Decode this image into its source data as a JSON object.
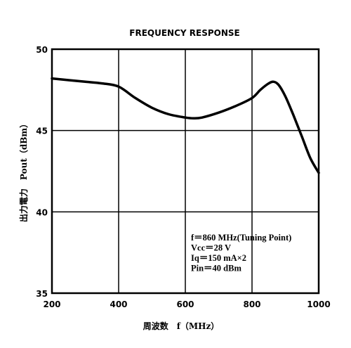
{
  "chart_data": {
    "type": "line",
    "title": "FREQUENCY RESPONSE",
    "xlabel": "周波数　f（MHz）",
    "ylabel": "出力電力　Pout（dBm）",
    "xlim": [
      200,
      1000
    ],
    "ylim": [
      35,
      50
    ],
    "x_ticks": [
      "200",
      "400",
      "600",
      "800",
      "1000"
    ],
    "y_ticks": [
      "50",
      "45",
      "40",
      "35"
    ],
    "grid": true,
    "series": [
      {
        "x": [
          200,
          250,
          300,
          350,
          400,
          450,
          500,
          550,
          600,
          625,
          650,
          700,
          750,
          800,
          825,
          850,
          865,
          880,
          900,
          925,
          950,
          975,
          1000
        ],
        "y": [
          48.2,
          48.1,
          48.0,
          47.9,
          47.7,
          47.0,
          46.4,
          46.0,
          45.8,
          45.75,
          45.8,
          46.1,
          46.5,
          47.0,
          47.5,
          47.9,
          48.0,
          47.8,
          47.1,
          45.9,
          44.6,
          43.3,
          42.4
        ]
      }
    ],
    "annotation": {
      "lines": [
        "f＝860 MHz(Tuning Point)",
        "Vcc＝28 V",
        "Iq＝150 mA×2",
        "Pin＝40 dBm"
      ]
    }
  }
}
